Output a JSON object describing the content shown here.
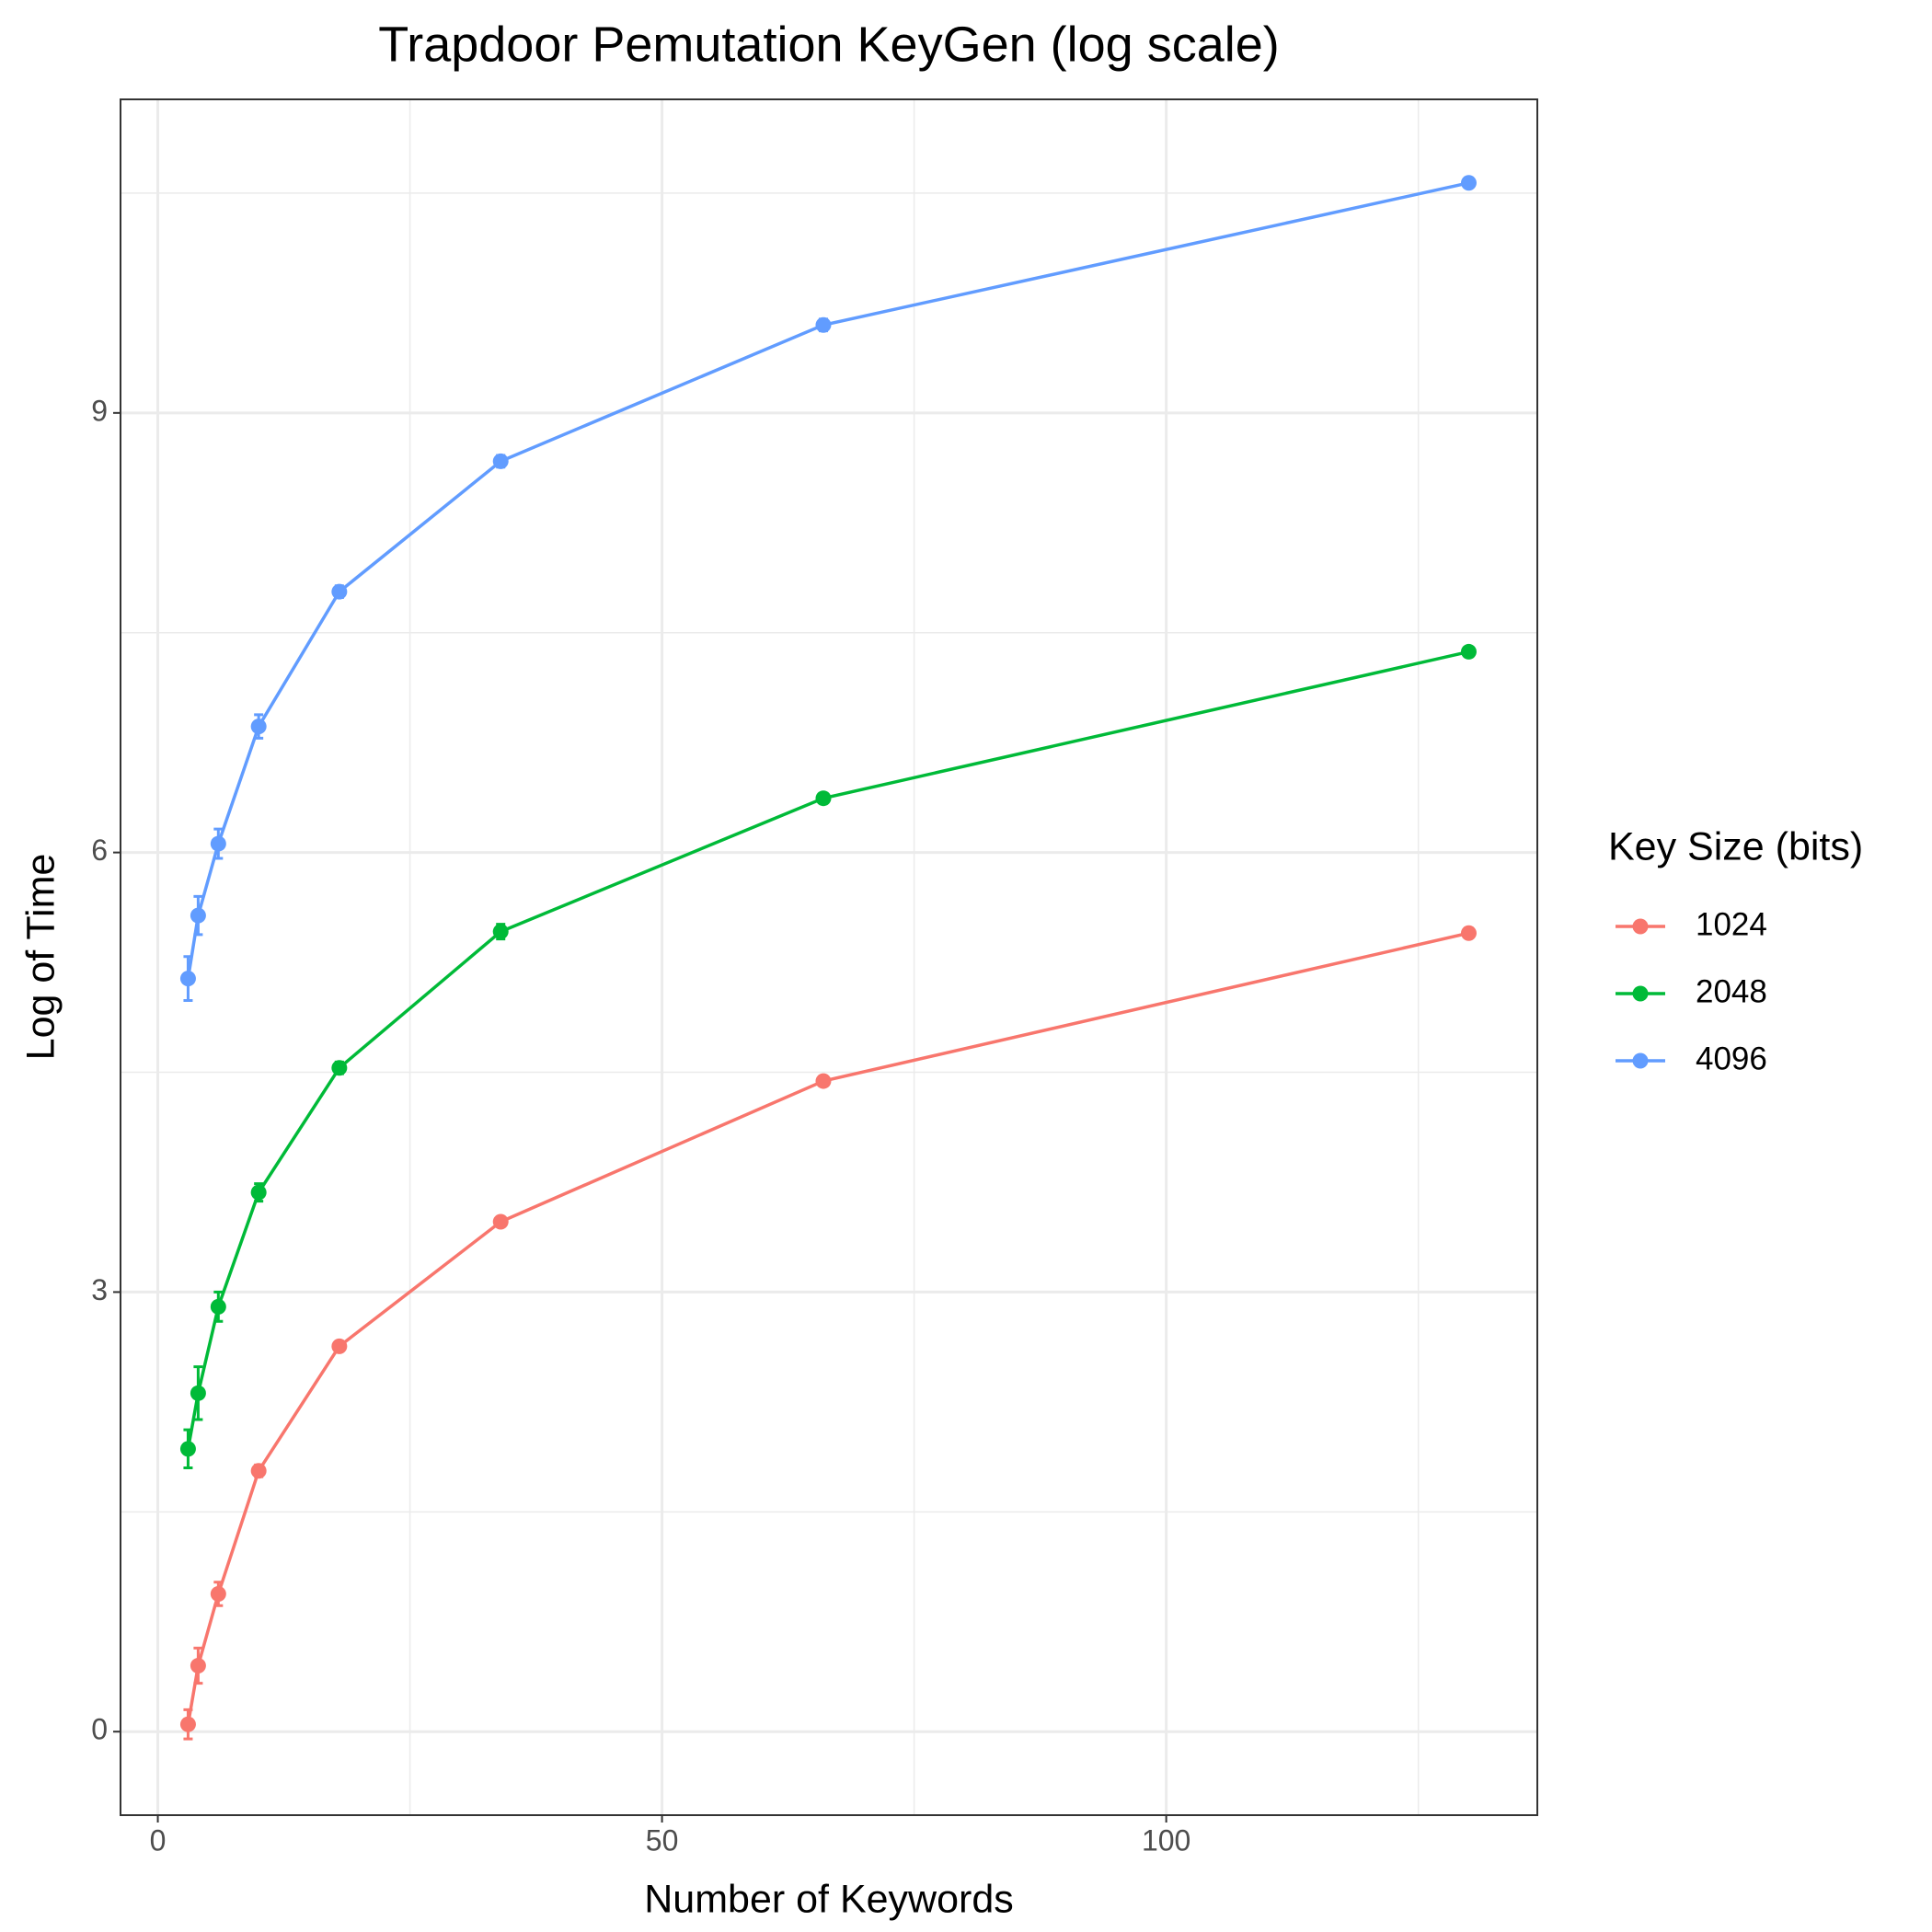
{
  "chart_data": {
    "type": "line",
    "title": "Trapdoor Pemutation KeyGen (log scale)",
    "x_label": "Number of Keywords",
    "y_label": "Log of Time",
    "legend_title": "Key Size (bits)",
    "legend_position": "right",
    "x": [
      3,
      4,
      6,
      10,
      18,
      34,
      66,
      130
    ],
    "series": [
      {
        "name": "1024",
        "color": "#F8766D",
        "values": [
          0.05,
          0.45,
          0.94,
          1.78,
          2.63,
          3.48,
          4.44,
          5.45
        ],
        "errors": [
          0.1,
          0.12,
          0.08,
          0.04,
          0.03,
          0.03,
          0.03,
          0.02
        ]
      },
      {
        "name": "2048",
        "color": "#00BA38",
        "values": [
          1.93,
          2.31,
          2.9,
          3.68,
          4.53,
          5.46,
          6.37,
          7.37
        ],
        "errors": [
          0.13,
          0.18,
          0.1,
          0.06,
          0.04,
          0.05,
          0.03,
          0.02
        ]
      },
      {
        "name": "4096",
        "color": "#619CFF",
        "values": [
          5.14,
          5.57,
          6.06,
          6.86,
          7.78,
          8.67,
          9.6,
          10.57
        ],
        "errors": [
          0.15,
          0.13,
          0.1,
          0.08,
          0.04,
          0.04,
          0.04,
          0.02
        ]
      }
    ],
    "xlim": [
      -3.7,
      136.8
    ],
    "ylim": [
      -0.57,
      11.14
    ],
    "xticks": [
      0,
      50,
      100
    ],
    "yticks": [
      0,
      3,
      6,
      9
    ],
    "xminorticks": [
      25,
      75,
      125
    ],
    "yminorticks": [
      1.5,
      4.5,
      7.5,
      10.5
    ],
    "grid": true
  }
}
